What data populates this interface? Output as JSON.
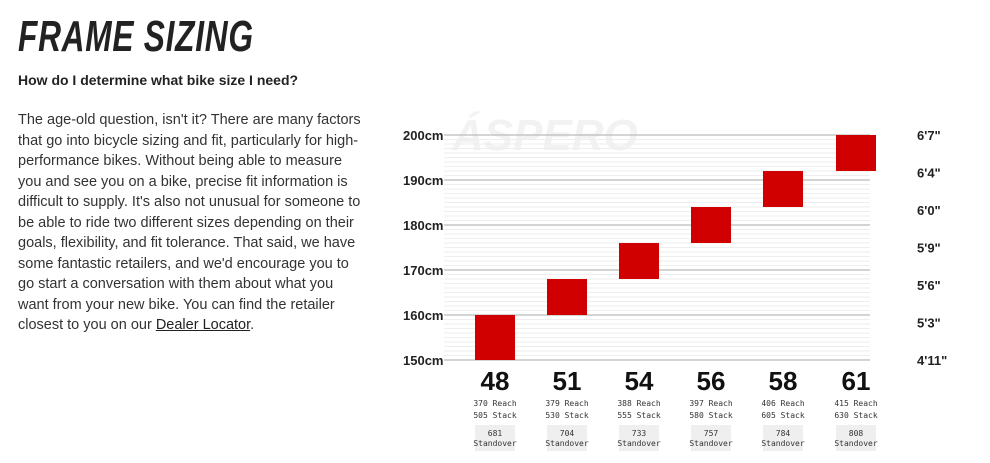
{
  "page": {
    "title": "FRAME SIZING",
    "question": "How do I determine what bike size I need?",
    "paragraph": "The age-old question, isn't it? There are many factors that go into bicycle sizing and fit, particularly for high-performance bikes. Without being able to measure you and see you on a bike, precise fit information is difficult to supply. It's also not unusual for someone to be able to ride two different sizes depending on their goals, flexibility, and fit tolerance. That said, we have some fantastic retailers, and we'd encourage you to go start a conversation with them about what you want from your new bike. You can find the retailer closest to you on our ",
    "link": "Dealer Locator",
    "paragraph_end": "."
  },
  "chart_data": {
    "type": "bar",
    "watermark": "ÁSPERO",
    "ylim": [
      150,
      200
    ],
    "y_ticks_left": [
      "150cm",
      "160cm",
      "170cm",
      "180cm",
      "190cm",
      "200cm"
    ],
    "y_ticks_right": [
      "4'11\"",
      "5'3\"",
      "5'6\"",
      "5'9\"",
      "6'0\"",
      "6'4\"",
      "6'7\""
    ],
    "bar_color": "#d10000",
    "grid": true,
    "categories": [
      "48",
      "51",
      "54",
      "56",
      "58",
      "61"
    ],
    "height_ranges_cm": [
      [
        150,
        160
      ],
      [
        160,
        168
      ],
      [
        168,
        176
      ],
      [
        176,
        184
      ],
      [
        184,
        192
      ],
      [
        192,
        200
      ]
    ],
    "reach": [
      "370 Reach",
      "379 Reach",
      "388 Reach",
      "397 Reach",
      "406 Reach",
      "415 Reach"
    ],
    "stack": [
      "505 Stack",
      "530 Stack",
      "555 Stack",
      "580 Stack",
      "605 Stack",
      "630 Stack"
    ],
    "standover": [
      "681",
      "704",
      "733",
      "757",
      "784",
      "808"
    ],
    "standover_label": "Standover"
  }
}
